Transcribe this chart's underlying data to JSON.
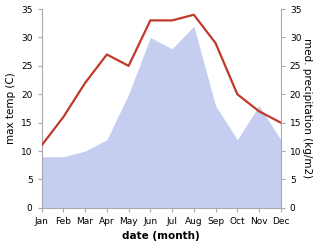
{
  "months": [
    "Jan",
    "Feb",
    "Mar",
    "Apr",
    "May",
    "Jun",
    "Jul",
    "Aug",
    "Sep",
    "Oct",
    "Nov",
    "Dec"
  ],
  "temperature": [
    11,
    16,
    22,
    27,
    25,
    33,
    33,
    34,
    29,
    20,
    17,
    15
  ],
  "precipitation": [
    9,
    9,
    10,
    12,
    20,
    30,
    28,
    32,
    18,
    12,
    18,
    12
  ],
  "temp_color": "#c0392b",
  "precip_fill_color": "#c5cef0",
  "left_ylabel": "max temp (C)",
  "right_ylabel": "med. precipitation (kg/m2)",
  "xlabel": "date (month)",
  "ylim": [
    0,
    35
  ],
  "yticks": [
    0,
    5,
    10,
    15,
    20,
    25,
    30,
    35
  ],
  "bg_color": "#ffffff",
  "line_width": 1.6,
  "fill_alpha": 1.0,
  "spine_color": "#aaaaaa",
  "tick_label_size": 6.5,
  "axis_label_size": 7.5
}
